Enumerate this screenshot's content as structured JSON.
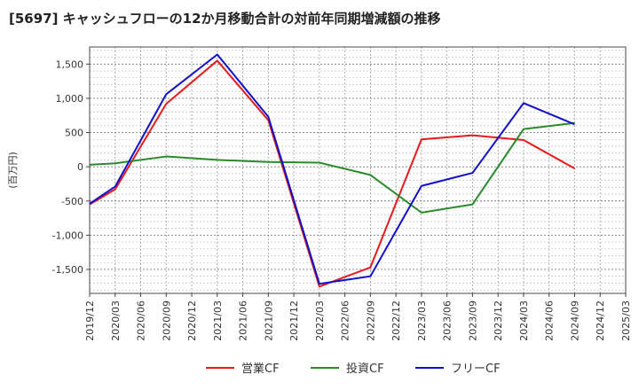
{
  "chart_data": {
    "type": "line",
    "title": "[5697]  キャッシュフローの12か月移動合計の対前年同期増減額の推移",
    "ylabel": "(百万円)",
    "xlabel": "",
    "ylim": [
      -1850,
      1750
    ],
    "yticks": [
      1500,
      1000,
      500,
      0,
      -500,
      -1000,
      -1500
    ],
    "ytick_labels": [
      "1,500",
      "1,000",
      "500",
      "0",
      "-500",
      "-1,000",
      "-1,500"
    ],
    "categories": [
      "2019/12",
      "2020/03",
      "2020/06",
      "2020/09",
      "2020/12",
      "2021/03",
      "2021/06",
      "2021/09",
      "2021/12",
      "2022/03",
      "2022/06",
      "2022/09",
      "2022/12",
      "2023/03",
      "2023/06",
      "2023/09",
      "2023/12",
      "2024/03",
      "2024/06",
      "2024/09",
      "2024/12",
      "2025/03"
    ],
    "grid": true,
    "legend_position": "bottom",
    "series": [
      {
        "name": "営業CF",
        "color": "#e41a1c",
        "values": [
          -550,
          -330,
          null,
          920,
          null,
          1550,
          null,
          680,
          null,
          -1750,
          null,
          -1470,
          null,
          400,
          null,
          460,
          null,
          390,
          null,
          -25,
          null,
          null
        ]
      },
      {
        "name": "投資CF",
        "color": "#2a8a2a",
        "values": [
          30,
          50,
          null,
          150,
          null,
          100,
          null,
          70,
          null,
          60,
          null,
          -120,
          null,
          -670,
          null,
          -550,
          null,
          550,
          null,
          640,
          null,
          null
        ]
      },
      {
        "name": "フリーCF",
        "color": "#1010cc",
        "values": [
          -540,
          -290,
          null,
          1060,
          null,
          1640,
          null,
          730,
          null,
          -1710,
          null,
          -1600,
          null,
          -280,
          null,
          -90,
          null,
          930,
          null,
          620,
          null,
          null
        ]
      }
    ]
  }
}
